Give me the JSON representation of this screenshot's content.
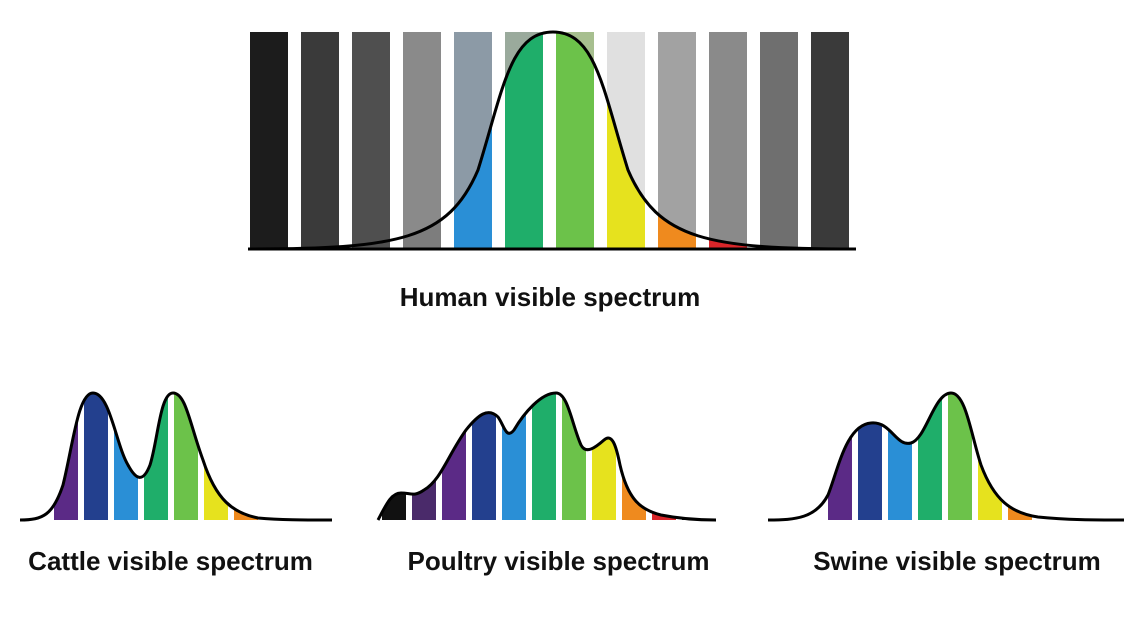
{
  "human": {
    "caption": "Human visible spectrum",
    "bar_colors": [
      "#1c1c1c",
      "#3a3a3a",
      "#4f4f4f",
      "#7d7d7d",
      "#2a8fd6",
      "#1fae6a",
      "#6cc24a",
      "#e6e21e",
      "#ef8a1e",
      "#d9262a",
      "#7d7d7d",
      "#3a3a3a",
      "#1c1c1c"
    ],
    "grey_overlay": [
      "#1c1c1c",
      "#3a3a3a",
      "#4f4f4f",
      "#8a8a8a",
      "#8c9aa6",
      "#9aaa9c",
      "#a7bf8f",
      "#e0e0e0",
      "#a2a2a2",
      "#8a8a8a",
      "#6f6f6f",
      "#3a3a3a",
      "#1c1c1c"
    ]
  },
  "cattle": {
    "caption": "Cattle visible spectrum",
    "bar_colors": [
      "#5b2a86",
      "#23408e",
      "#2a8fd6",
      "#1fae6a",
      "#6cc24a",
      "#e6e21e",
      "#ef8a1e",
      "#d9262a"
    ]
  },
  "poultry": {
    "caption": "Poultry visible spectrum",
    "bar_colors": [
      "#111111",
      "#4a2a6a",
      "#5b2a86",
      "#23408e",
      "#2a8fd6",
      "#1fae6a",
      "#6cc24a",
      "#e6e21e",
      "#ef8a1e",
      "#d9262a",
      "#111111"
    ]
  },
  "swine": {
    "caption": "Swine visible spectrum",
    "bar_colors": [
      "#5b2a86",
      "#23408e",
      "#2a8fd6",
      "#1fae6a",
      "#6cc24a",
      "#e6e21e",
      "#ef8a1e"
    ]
  }
}
